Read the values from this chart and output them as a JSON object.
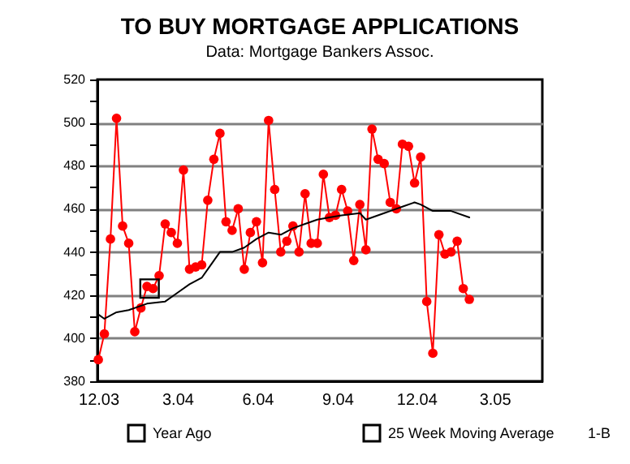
{
  "chart_data": {
    "type": "line",
    "title": "TO BUY MORTGAGE APPLICATIONS",
    "subtitle": "Data: Mortgage Bankers Assoc.",
    "annotations": [
      "1-B"
    ],
    "xlim": [
      "2003-11-30",
      "2005-04-25"
    ],
    "xticks": [
      {
        "value": "2003-12-01",
        "label": "12.03"
      },
      {
        "value": "2004-03-01",
        "label": "3.04"
      },
      {
        "value": "2004-06-01",
        "label": "6.04"
      },
      {
        "value": "2004-09-01",
        "label": "9.04"
      },
      {
        "value": "2004-12-01",
        "label": "12.04"
      },
      {
        "value": "2005-03-01",
        "label": "3.05"
      }
    ],
    "ylim": [
      380,
      520
    ],
    "yticks": [
      380,
      {
        "value": 390,
        "label": null
      },
      400,
      {
        "value": 410,
        "label": null
      },
      420,
      {
        "value": 430,
        "label": null
      },
      440,
      {
        "value": 450,
        "label": null
      },
      460,
      {
        "value": 470,
        "label": null
      },
      480,
      {
        "value": 490,
        "label": null
      },
      500,
      {
        "value": 510,
        "label": null
      },
      520
    ],
    "grid": "y",
    "legend": "bottom",
    "series": [
      {
        "color": "#ff0000",
        "marker": "circle",
        "x": [
          "2003-12-01",
          "2003-12-08",
          "2003-12-15",
          "2003-12-22",
          "2003-12-29",
          "2004-01-05",
          "2004-01-12",
          "2004-01-19",
          "2004-01-26",
          "2004-02-02",
          "2004-02-09",
          "2004-02-16",
          "2004-02-23",
          "2004-03-01",
          "2004-03-08",
          "2004-03-15",
          "2004-03-22",
          "2004-03-29",
          "2004-04-05",
          "2004-04-12",
          "2004-04-19",
          "2004-04-26",
          "2004-05-03",
          "2004-05-10",
          "2004-05-17",
          "2004-05-24",
          "2004-05-31",
          "2004-06-07",
          "2004-06-14",
          "2004-06-21",
          "2004-06-28",
          "2004-07-05",
          "2004-07-12",
          "2004-07-19",
          "2004-07-26",
          "2004-08-02",
          "2004-08-09",
          "2004-08-16",
          "2004-08-23",
          "2004-08-30",
          "2004-09-06",
          "2004-09-13",
          "2004-09-20",
          "2004-09-27",
          "2004-10-04",
          "2004-10-11",
          "2004-10-18",
          "2004-10-25",
          "2004-11-01",
          "2004-11-08",
          "2004-11-15",
          "2004-11-22",
          "2004-11-29",
          "2004-12-06",
          "2004-12-13",
          "2004-12-20",
          "2004-12-27",
          "2005-01-03",
          "2005-01-10",
          "2005-01-17",
          "2005-01-24",
          "2005-01-31"
        ],
        "values": [
          390,
          402,
          446,
          502,
          452,
          444,
          403,
          414,
          424,
          423,
          429,
          453,
          449,
          444,
          478,
          432,
          433,
          434,
          464,
          483,
          495,
          454,
          450,
          460,
          432,
          449,
          454,
          435,
          501,
          469,
          440,
          445,
          452,
          440,
          467,
          444,
          444,
          476,
          456,
          457,
          469,
          459,
          436,
          462,
          441,
          497,
          483,
          481,
          463,
          460,
          490,
          489,
          472,
          484,
          417,
          393,
          448,
          439,
          440,
          445,
          423,
          418
        ]
      },
      {
        "type": "scatter",
        "name": "Year Ago",
        "color": "#000000",
        "marker": "square",
        "x": [
          "2004-01-29"
        ],
        "values": [
          423
        ]
      },
      {
        "name": "25 Week Moving Average",
        "color": "#000000",
        "marker": "none",
        "x": [
          "2003-12-01",
          "2003-12-08",
          "2003-12-22",
          "2004-01-05",
          "2004-01-26",
          "2004-02-16",
          "2004-03-01",
          "2004-03-15",
          "2004-03-29",
          "2004-04-05",
          "2004-04-19",
          "2004-05-03",
          "2004-05-17",
          "2004-05-31",
          "2004-06-14",
          "2004-06-28",
          "2004-07-12",
          "2004-07-26",
          "2004-08-09",
          "2004-08-23",
          "2004-09-06",
          "2004-09-27",
          "2004-10-04",
          "2004-10-25",
          "2004-11-01",
          "2004-11-15",
          "2004-11-29",
          "2004-12-06",
          "2004-12-20",
          "2005-01-10",
          "2005-01-31"
        ],
        "values": [
          411,
          409,
          412,
          413,
          416,
          417,
          421,
          425,
          428,
          432,
          440,
          440,
          442,
          446,
          449,
          448,
          451,
          453,
          455,
          456,
          457,
          458,
          455,
          458,
          459,
          461,
          463,
          462,
          459,
          459,
          456
        ]
      }
    ]
  }
}
